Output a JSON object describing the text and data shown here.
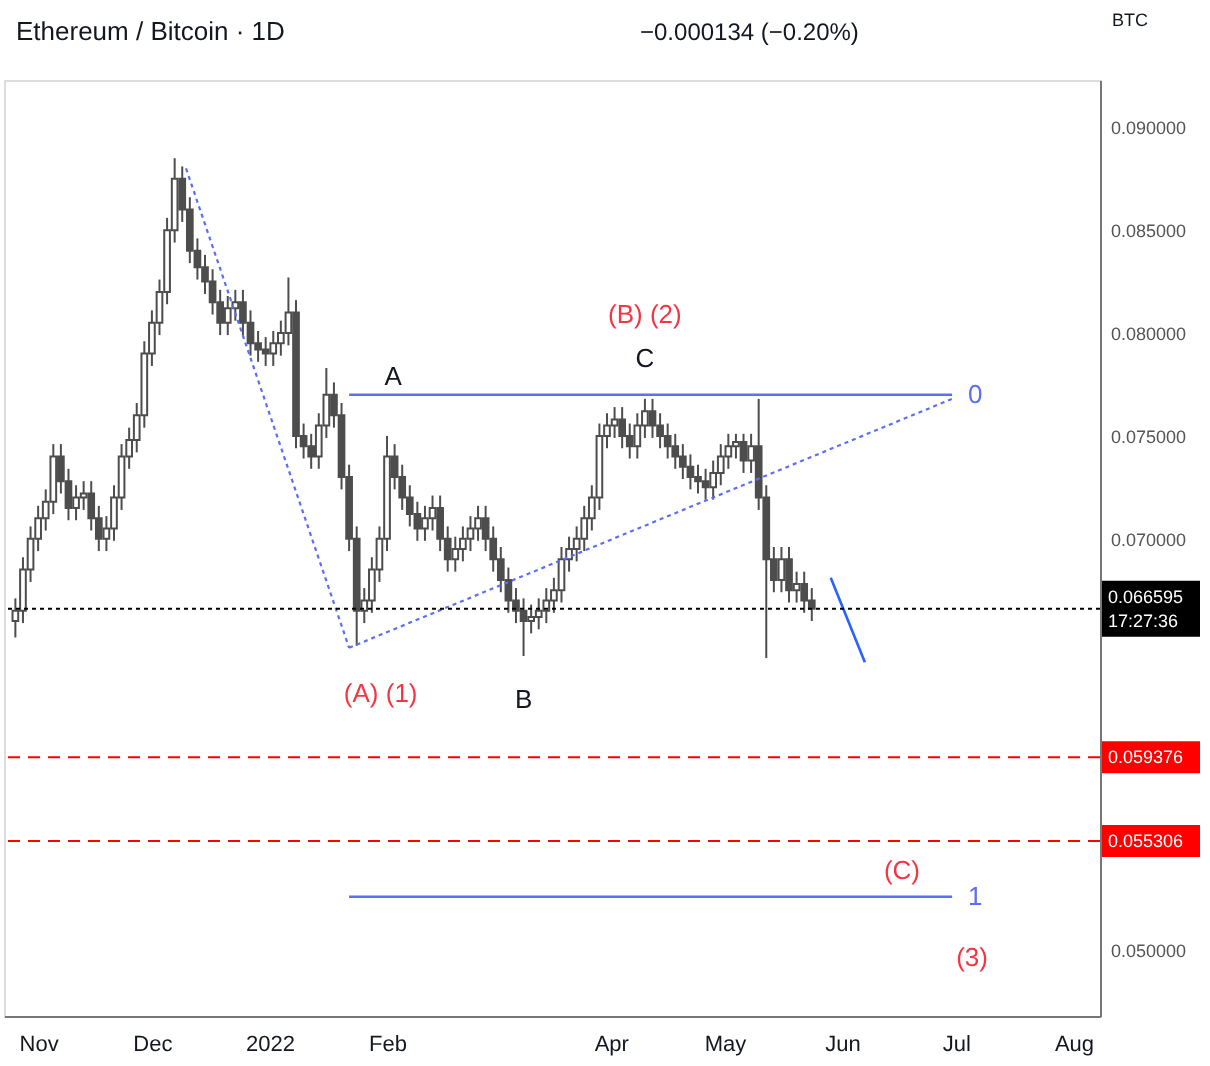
{
  "chart_data": {
    "type": "candlestick",
    "title": "Ethereum / Bitcoin · 1D",
    "ylabel": "BTC",
    "color": "#4d4d4d",
    "x": [
      "2021-10-26",
      "2021-10-28",
      "2021-10-30",
      "2021-11-01",
      "2021-11-03",
      "2021-11-05",
      "2021-11-07",
      "2021-11-09",
      "2021-11-11",
      "2021-11-13",
      "2021-11-15",
      "2021-11-17",
      "2021-11-19",
      "2021-11-21",
      "2021-11-23",
      "2021-11-25",
      "2021-11-27",
      "2021-11-29",
      "2021-12-01",
      "2021-12-03",
      "2021-12-05",
      "2021-12-07",
      "2021-12-09",
      "2021-12-11",
      "2021-12-13",
      "2021-12-15",
      "2021-12-17",
      "2021-12-19",
      "2021-12-21",
      "2021-12-23",
      "2021-12-25",
      "2021-12-27",
      "2021-12-29",
      "2021-12-31",
      "2022-01-02",
      "2022-01-04",
      "2022-01-06",
      "2022-01-08",
      "2022-01-10",
      "2022-01-12",
      "2022-01-14",
      "2022-01-16",
      "2022-01-18",
      "2022-01-20",
      "2022-01-22",
      "2022-01-24",
      "2022-01-26",
      "2022-01-28",
      "2022-01-30",
      "2022-02-01",
      "2022-02-03",
      "2022-02-05",
      "2022-02-07",
      "2022-02-09",
      "2022-02-11",
      "2022-02-13",
      "2022-02-15",
      "2022-02-17",
      "2022-02-19",
      "2022-02-21",
      "2022-02-23",
      "2022-02-25",
      "2022-02-27",
      "2022-03-01",
      "2022-03-03",
      "2022-03-05",
      "2022-03-07",
      "2022-03-09",
      "2022-03-11",
      "2022-03-13",
      "2022-03-15",
      "2022-03-17",
      "2022-03-19",
      "2022-03-21",
      "2022-03-23",
      "2022-03-25",
      "2022-03-27",
      "2022-03-29",
      "2022-03-31",
      "2022-04-02",
      "2022-04-04",
      "2022-04-06",
      "2022-04-08",
      "2022-04-10",
      "2022-04-12",
      "2022-04-14",
      "2022-04-16",
      "2022-04-18",
      "2022-04-20",
      "2022-04-22",
      "2022-04-24",
      "2022-04-26",
      "2022-04-28",
      "2022-04-30",
      "2022-05-02",
      "2022-05-04",
      "2022-05-06",
      "2022-05-08",
      "2022-05-10",
      "2022-05-12",
      "2022-05-14",
      "2022-05-16",
      "2022-05-18",
      "2022-05-20",
      "2022-05-22",
      "2022-05-24"
    ],
    "ohlc": [
      [
        0.066,
        0.0671,
        0.0652,
        0.0665
      ],
      [
        0.0665,
        0.0691,
        0.0659,
        0.0685
      ],
      [
        0.0685,
        0.0706,
        0.0679,
        0.07
      ],
      [
        0.07,
        0.0716,
        0.0694,
        0.071
      ],
      [
        0.071,
        0.0724,
        0.0704,
        0.0718
      ],
      [
        0.0718,
        0.0746,
        0.0712,
        0.074
      ],
      [
        0.074,
        0.0746,
        0.0722,
        0.0728
      ],
      [
        0.0728,
        0.0734,
        0.0709,
        0.0715
      ],
      [
        0.0715,
        0.0726,
        0.0709,
        0.072
      ],
      [
        0.072,
        0.0728,
        0.0714,
        0.0722
      ],
      [
        0.0722,
        0.0728,
        0.0704,
        0.071
      ],
      [
        0.071,
        0.0716,
        0.0694,
        0.07
      ],
      [
        0.07,
        0.0711,
        0.0694,
        0.0705
      ],
      [
        0.0705,
        0.0726,
        0.0699,
        0.072
      ],
      [
        0.072,
        0.0746,
        0.0714,
        0.074
      ],
      [
        0.074,
        0.0754,
        0.0734,
        0.0748
      ],
      [
        0.0748,
        0.0766,
        0.0742,
        0.076
      ],
      [
        0.076,
        0.0796,
        0.0754,
        0.079
      ],
      [
        0.079,
        0.0811,
        0.0784,
        0.0805
      ],
      [
        0.0805,
        0.0826,
        0.0799,
        0.082
      ],
      [
        0.082,
        0.0856,
        0.0814,
        0.085
      ],
      [
        0.085,
        0.0885,
        0.0844,
        0.0875
      ],
      [
        0.0875,
        0.0881,
        0.0854,
        0.086
      ],
      [
        0.086,
        0.0866,
        0.0834,
        0.084
      ],
      [
        0.084,
        0.0846,
        0.0826,
        0.0832
      ],
      [
        0.0832,
        0.0838,
        0.0819,
        0.0825
      ],
      [
        0.0825,
        0.0831,
        0.0809,
        0.0815
      ],
      [
        0.0815,
        0.0821,
        0.0799,
        0.0805
      ],
      [
        0.0805,
        0.0818,
        0.0799,
        0.0812
      ],
      [
        0.0812,
        0.0821,
        0.0806,
        0.0815
      ],
      [
        0.0815,
        0.0821,
        0.0799,
        0.0805
      ],
      [
        0.0805,
        0.0811,
        0.0789,
        0.0795
      ],
      [
        0.0795,
        0.0801,
        0.0786,
        0.0792
      ],
      [
        0.0792,
        0.0798,
        0.0784,
        0.079
      ],
      [
        0.079,
        0.0801,
        0.0784,
        0.0795
      ],
      [
        0.0795,
        0.0806,
        0.0789,
        0.08
      ],
      [
        0.08,
        0.0827,
        0.0794,
        0.081
      ],
      [
        0.081,
        0.0816,
        0.0744,
        0.075
      ],
      [
        0.075,
        0.0756,
        0.0739,
        0.0745
      ],
      [
        0.0745,
        0.0751,
        0.0734,
        0.074
      ],
      [
        0.074,
        0.0761,
        0.0734,
        0.0755
      ],
      [
        0.0755,
        0.0783,
        0.0749,
        0.077
      ],
      [
        0.077,
        0.0776,
        0.0754,
        0.076
      ],
      [
        0.076,
        0.0766,
        0.0724,
        0.073
      ],
      [
        0.073,
        0.0736,
        0.0694,
        0.07
      ],
      [
        0.07,
        0.0706,
        0.0648,
        0.0665
      ],
      [
        0.0665,
        0.0676,
        0.0659,
        0.067
      ],
      [
        0.067,
        0.0691,
        0.0664,
        0.0685
      ],
      [
        0.0685,
        0.0706,
        0.0679,
        0.07
      ],
      [
        0.07,
        0.075,
        0.0694,
        0.074
      ],
      [
        0.074,
        0.0746,
        0.0724,
        0.073
      ],
      [
        0.073,
        0.0736,
        0.0714,
        0.072
      ],
      [
        0.072,
        0.0726,
        0.0706,
        0.0712
      ],
      [
        0.0712,
        0.0718,
        0.0699,
        0.0705
      ],
      [
        0.0705,
        0.0716,
        0.0699,
        0.071
      ],
      [
        0.071,
        0.0721,
        0.0704,
        0.0715
      ],
      [
        0.0715,
        0.0721,
        0.0694,
        0.07
      ],
      [
        0.07,
        0.0706,
        0.0684,
        0.069
      ],
      [
        0.069,
        0.0701,
        0.0684,
        0.0695
      ],
      [
        0.0695,
        0.0706,
        0.0689,
        0.07
      ],
      [
        0.07,
        0.0711,
        0.0694,
        0.0705
      ],
      [
        0.0705,
        0.0716,
        0.0699,
        0.071
      ],
      [
        0.071,
        0.0716,
        0.0694,
        0.07
      ],
      [
        0.07,
        0.0706,
        0.0684,
        0.069
      ],
      [
        0.069,
        0.0696,
        0.0674,
        0.068
      ],
      [
        0.068,
        0.0686,
        0.0664,
        0.067
      ],
      [
        0.067,
        0.0676,
        0.0659,
        0.0665
      ],
      [
        0.0665,
        0.0671,
        0.0643,
        0.066
      ],
      [
        0.066,
        0.0668,
        0.0654,
        0.0662
      ],
      [
        0.0662,
        0.0671,
        0.0656,
        0.0665
      ],
      [
        0.0665,
        0.0676,
        0.0659,
        0.067
      ],
      [
        0.067,
        0.0681,
        0.0664,
        0.0675
      ],
      [
        0.0675,
        0.0696,
        0.0669,
        0.069
      ],
      [
        0.069,
        0.0701,
        0.0684,
        0.0695
      ],
      [
        0.0695,
        0.0706,
        0.0689,
        0.07
      ],
      [
        0.07,
        0.0716,
        0.0694,
        0.071
      ],
      [
        0.071,
        0.0726,
        0.0704,
        0.072
      ],
      [
        0.072,
        0.0756,
        0.0714,
        0.075
      ],
      [
        0.075,
        0.0761,
        0.0744,
        0.0755
      ],
      [
        0.0755,
        0.0764,
        0.0749,
        0.0758
      ],
      [
        0.0758,
        0.0764,
        0.0744,
        0.075
      ],
      [
        0.075,
        0.0756,
        0.0739,
        0.0745
      ],
      [
        0.0745,
        0.0761,
        0.0739,
        0.0755
      ],
      [
        0.0755,
        0.0768,
        0.0749,
        0.0762
      ],
      [
        0.0762,
        0.0768,
        0.0749,
        0.0755
      ],
      [
        0.0755,
        0.0761,
        0.0744,
        0.075
      ],
      [
        0.075,
        0.0756,
        0.0739,
        0.0745
      ],
      [
        0.0745,
        0.0751,
        0.0734,
        0.074
      ],
      [
        0.074,
        0.0746,
        0.0729,
        0.0735
      ],
      [
        0.0735,
        0.0741,
        0.0724,
        0.073
      ],
      [
        0.073,
        0.0736,
        0.0722,
        0.0728
      ],
      [
        0.0728,
        0.0734,
        0.0719,
        0.0725
      ],
      [
        0.0725,
        0.0738,
        0.0719,
        0.0732
      ],
      [
        0.0732,
        0.0746,
        0.0726,
        0.074
      ],
      [
        0.074,
        0.0751,
        0.0734,
        0.0745
      ],
      [
        0.0745,
        0.0751,
        0.0739,
        0.0747
      ],
      [
        0.0747,
        0.0751,
        0.0732,
        0.0738
      ],
      [
        0.0738,
        0.0751,
        0.0732,
        0.0745
      ],
      [
        0.0745,
        0.0768,
        0.0714,
        0.072
      ],
      [
        0.072,
        0.0726,
        0.0642,
        0.069
      ],
      [
        0.069,
        0.0696,
        0.0674,
        0.068
      ],
      [
        0.068,
        0.0696,
        0.0674,
        0.069
      ],
      [
        0.069,
        0.0696,
        0.0669,
        0.0675
      ],
      [
        0.0675,
        0.0684,
        0.0669,
        0.0678
      ],
      [
        0.0678,
        0.0684,
        0.0664,
        0.067
      ],
      [
        0.067,
        0.0676,
        0.066,
        0.0666
      ]
    ],
    "series": [
      {
        "type": "line",
        "color": "#5b6ef5",
        "line_style": "solid",
        "x": [
          "2022-01-22",
          "2022-06-30"
        ],
        "values": [
          0.077,
          0.077
        ]
      },
      {
        "type": "line",
        "color": "#5b6ef5",
        "line_style": "dotted",
        "x": [
          "2021-12-10",
          "2022-01-22"
        ],
        "values": [
          0.088,
          0.0647
        ]
      },
      {
        "type": "line",
        "color": "#5b6ef5",
        "line_style": "dotted",
        "x": [
          "2022-01-22",
          "2022-06-30"
        ],
        "values": [
          0.0647,
          0.0768
        ]
      },
      {
        "type": "line",
        "color": "#5b6ef5",
        "line_style": "solid",
        "x": [
          "2022-01-22",
          "2022-06-30"
        ],
        "values": [
          0.0526,
          0.0526
        ]
      },
      {
        "type": "line",
        "color": "#2962ff",
        "line_style": "solid",
        "x": [
          "2022-05-29",
          "2022-06-07"
        ],
        "values": [
          0.0681,
          0.064
        ]
      }
    ],
    "ref_lines": [
      {
        "axis": "y",
        "value": 0.066595,
        "label": "0.066595 17:27:36",
        "color": "#000000",
        "line_style": "dotted"
      },
      {
        "axis": "y",
        "value": 0.059376,
        "label": "0.059376",
        "color": "#ff0000",
        "line_style": "dashed"
      },
      {
        "axis": "y",
        "value": 0.055306,
        "label": "0.055306",
        "color": "#ff0000",
        "line_style": "dashed"
      }
    ],
    "annotations": [
      {
        "text": "(A) (1)",
        "x": "2022-01-24",
        "y": 0.0648
      },
      {
        "text": "B",
        "x": "2022-03-09",
        "y": 0.0643
      },
      {
        "text": "A",
        "x": "2022-01-22",
        "y": 0.077
      },
      {
        "text": "C",
        "x": "2022-04-10",
        "y": 0.0768
      },
      {
        "text": "(B) (2)",
        "x": "2022-04-10",
        "y": 0.0768
      },
      {
        "text": "(C)",
        "x": "2022-06-21",
        "y": 0.0526
      },
      "(3)",
      {
        "text": "0",
        "x": "2022-06-30",
        "y": 0.077
      },
      {
        "text": "1",
        "x": "2022-06-30",
        "y": 0.0526
      },
      "−0.000134 (−0.20%)"
    ],
    "xlim": [
      "2021-10-23",
      "2022-08-08"
    ],
    "xticks": [
      {
        "value": "2021-11-01",
        "label": "Nov"
      },
      {
        "value": "2021-12-01",
        "label": "Dec"
      },
      {
        "value": "2022-01-01",
        "label": "2022"
      },
      {
        "value": "2022-02-01",
        "label": "Feb"
      },
      {
        "value": "2022-04-01",
        "label": "Apr"
      },
      {
        "value": "2022-05-01",
        "label": "May"
      },
      {
        "value": "2022-06-01",
        "label": "Jun"
      },
      {
        "value": "2022-07-01",
        "label": "Jul"
      },
      {
        "value": "2022-08-01",
        "label": "Aug"
      }
    ],
    "ylim": [
      0.0468,
      0.0923
    ],
    "yticks": [
      {
        "value": 0.05,
        "label": "0.050000"
      },
      {
        "value": 0.07,
        "label": "0.070000"
      },
      {
        "value": 0.075,
        "label": "0.075000"
      },
      {
        "value": 0.08,
        "label": "0.080000"
      },
      {
        "value": 0.085,
        "label": "0.085000"
      },
      {
        "value": 0.09,
        "label": "0.090000"
      }
    ],
    "grid": false
  }
}
